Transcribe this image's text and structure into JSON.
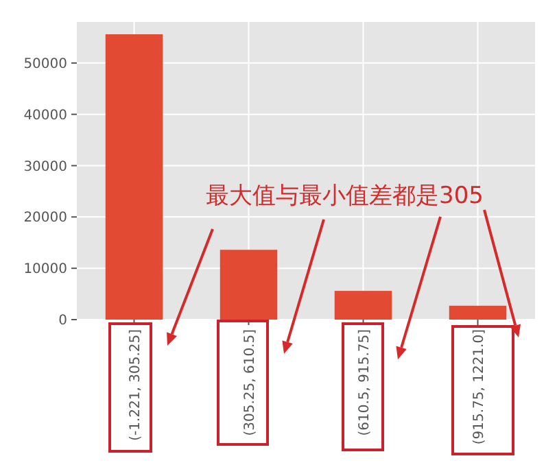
{
  "chart_data": {
    "type": "bar",
    "categories": [
      "(-1.221, 305.25]",
      "(305.25, 610.5]",
      "(610.5, 915.75]",
      "(915.75, 1221.0]"
    ],
    "values": [
      55600,
      13600,
      5600,
      2700
    ],
    "color": "#e24a33",
    "ylim": [
      0,
      58000
    ],
    "yticks": [
      0,
      10000,
      20000,
      30000,
      40000,
      50000
    ],
    "grid": true,
    "annotations": [
      "最大值与最小值差都是305"
    ]
  }
}
